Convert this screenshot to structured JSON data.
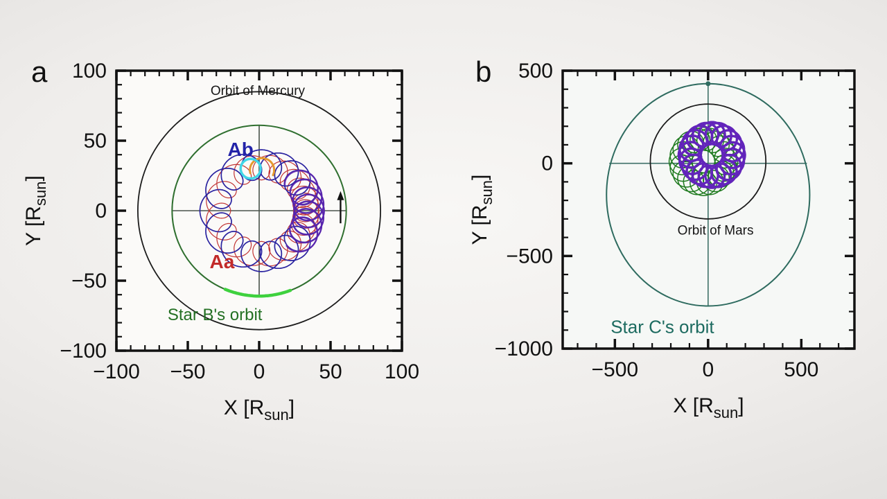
{
  "figure": {
    "panels": [
      {
        "letter": "a"
      },
      {
        "letter": "b"
      }
    ]
  },
  "chart_data": [
    {
      "type": "line",
      "panel": "a",
      "title": "",
      "xlabel": {
        "text": "X [R_sun]",
        "main": "X [R",
        "sub": "sun",
        "end": "]"
      },
      "ylabel": {
        "text": "Y [R_sun]",
        "main": "Y [R",
        "sub": "sun",
        "end": "]"
      },
      "xlim": [
        -100,
        100
      ],
      "ylim": [
        -100,
        100
      ],
      "xticks": [
        -100,
        -50,
        0,
        50,
        100
      ],
      "xtick_labels": [
        "−100",
        "−50",
        "0",
        "50",
        "100"
      ],
      "yticks": [
        100,
        50,
        0,
        -50,
        -100
      ],
      "ytick_labels": [
        "100",
        "50",
        "0",
        "−50",
        "−100"
      ],
      "minor_step": 10,
      "plot_bg": "#fbfaf8",
      "frame_color": "#111111",
      "crosshair": {
        "color": "#49524a",
        "width": 1.6,
        "x_extent": [
          -61,
          61
        ],
        "y_extent": [
          -61,
          61
        ]
      },
      "circles": [
        {
          "name": "mercury-orbit-circle",
          "label": "Orbit of Mercury",
          "cx": 0,
          "cy": 0,
          "rx": 85,
          "ry": 85,
          "color": "#1c1c1c",
          "width": 1.8,
          "layer": "under"
        },
        {
          "name": "star-b-orbit-circle",
          "label": "Star B's orbit",
          "cx": 0,
          "cy": 0,
          "rx": 61,
          "ry": 61,
          "color": "#2f6f2f",
          "width": 2,
          "layer": "under"
        },
        {
          "name": "ab-highlight-cyan-circle",
          "label": "Ab current position",
          "cx": -6,
          "cy": 30,
          "rx": 7,
          "ry": 7,
          "color": "#41d7e8",
          "width": 3.5,
          "layer": "over"
        }
      ],
      "arcs": [
        {
          "name": "star-b-bright-green-arc",
          "cx": 0,
          "cy": 0,
          "r": 61,
          "start_deg": 247,
          "end_deg": 291,
          "color": "#3ed13e",
          "width": 4.5,
          "layer": "under"
        },
        {
          "name": "aa-highlight-orange-arc",
          "cx": 2,
          "cy": 29,
          "r": 8.5,
          "start_deg": -25,
          "end_deg": 195,
          "color": "#e49a2e",
          "width": 3,
          "layer": "over"
        }
      ],
      "spirographs": [
        {
          "name": "aa-orbit-trace",
          "star": "Aa",
          "color": "#c13434",
          "cx": 2,
          "cy": 0,
          "ring_r": 31,
          "loop_r": 9,
          "loops": 19,
          "phase": 3.14159,
          "ecc": 0.55,
          "width": 1.2,
          "t0": 0,
          "t1": 6.28319,
          "opacity": 1
        },
        {
          "name": "ab-orbit-trace",
          "star": "Ab",
          "color": "#2a23a0",
          "cx": 2,
          "cy": 0,
          "ring_r": 33,
          "loop_r": 10.5,
          "loops": 19,
          "phase": 0,
          "ecc": 0.55,
          "width": 1.7,
          "t0": 0,
          "t1": 6.28319,
          "opacity": 1
        },
        {
          "name": "ab-orbit-dense-overlay",
          "star": "Ab",
          "color": "#5b24ae",
          "cx": 2,
          "cy": 0,
          "ring_r": 33,
          "loop_r": 10.5,
          "loops": 19,
          "phase": 0.33,
          "ecc": 0.55,
          "width": 2.3,
          "t0": -1.15,
          "t1": 1.15,
          "opacity": 0.9
        }
      ],
      "dots": [],
      "arrow": {
        "name": "motion-direction-arrow",
        "x": 57,
        "y_from": -9,
        "y_to": 14,
        "color": "#111111",
        "width": 2.4
      },
      "annotations": [
        {
          "text": "Orbit of Mercury",
          "x": -1,
          "y": 86,
          "color": "#161616",
          "size": 19,
          "weight": "normal"
        },
        {
          "text": "Ab",
          "x": -13,
          "y": 44,
          "color": "#2323a8",
          "size": 28,
          "weight": "bold"
        },
        {
          "text": "Aa",
          "x": -26,
          "y": -36,
          "color": "#c22a2a",
          "size": 28,
          "weight": "bold"
        },
        {
          "text": "Star B's orbit",
          "x": -31,
          "y": -74,
          "color": "#237023",
          "size": 24,
          "weight": "normal"
        }
      ]
    },
    {
      "type": "line",
      "panel": "b",
      "title": "",
      "xlabel": {
        "text": "X [R_sun]",
        "main": "X [R",
        "sub": "sun",
        "end": "]"
      },
      "ylabel": {
        "text": "Y [R_sun]",
        "main": "Y [R",
        "sub": "sun",
        "end": "]"
      },
      "xlim": [
        -780,
        785
      ],
      "ylim": [
        -1000,
        500
      ],
      "xticks": [
        -500,
        0,
        500
      ],
      "xtick_labels": [
        "−500",
        "0",
        "500"
      ],
      "yticks": [
        500,
        0,
        -500,
        -1000
      ],
      "ytick_labels": [
        "500",
        "0",
        "−500",
        "−1000"
      ],
      "minor_step": 100,
      "plot_bg": "#f6f8f6",
      "frame_color": "#111111",
      "crosshair": {
        "color": "#3f7168",
        "width": 1.6,
        "x_extent": [
          -530,
          530
        ],
        "y_extent": [
          -770,
          430
        ]
      },
      "circles": [
        {
          "name": "star-c-orbit-ellipse",
          "label": "Star C's orbit",
          "cx": 0,
          "cy": -170,
          "rx": 545,
          "ry": 600,
          "color": "#2e6b5f",
          "width": 2,
          "layer": "under"
        },
        {
          "name": "mars-orbit-circle",
          "label": "Orbit of Mars",
          "cx": 0,
          "cy": 10,
          "rx": 310,
          "ry": 310,
          "color": "#1c1c1c",
          "width": 1.8,
          "layer": "under"
        }
      ],
      "arcs": [],
      "spirographs": [
        {
          "name": "star-b-orbit-pattern",
          "star": "B",
          "color": "#1f7a1f",
          "cx": -25,
          "cy": 10,
          "ring_r": 122,
          "loop_r": 62,
          "loops": 21,
          "phase": 0,
          "ecc": 0,
          "width": 1.5,
          "t0": 0,
          "t1": 6.28319,
          "opacity": 1
        },
        {
          "name": "inner-pair-orbit-pattern-1",
          "star": "Aa+Ab",
          "color": "#5517ad",
          "cx": 20,
          "cy": 45,
          "ring_r": 118,
          "loop_r": 60,
          "loops": 21,
          "phase": 0.12,
          "ecc": 0,
          "width": 3.2,
          "t0": 0,
          "t1": 6.28319,
          "opacity": 1
        },
        {
          "name": "inner-pair-orbit-pattern-2",
          "star": "Aa+Ab",
          "color": "#6527be",
          "cx": 20,
          "cy": 45,
          "ring_r": 118,
          "loop_r": 60,
          "loops": 21,
          "phase": 0.42,
          "ecc": 0,
          "width": 2.6,
          "t0": 0,
          "t1": 6.28319,
          "opacity": 0.9
        }
      ],
      "dots": [
        {
          "name": "star-c-apex-dot",
          "x": 0,
          "y": 430,
          "r": 3.5,
          "color": "#2e6b5f"
        }
      ],
      "arrow": null,
      "annotations": [
        {
          "text": "Orbit of Mars",
          "x": 40,
          "y": -360,
          "color": "#161616",
          "size": 19,
          "weight": "normal"
        },
        {
          "text": "Star C's orbit",
          "x": -245,
          "y": -880,
          "color": "#1d6b60",
          "size": 26,
          "weight": "normal"
        }
      ]
    }
  ]
}
